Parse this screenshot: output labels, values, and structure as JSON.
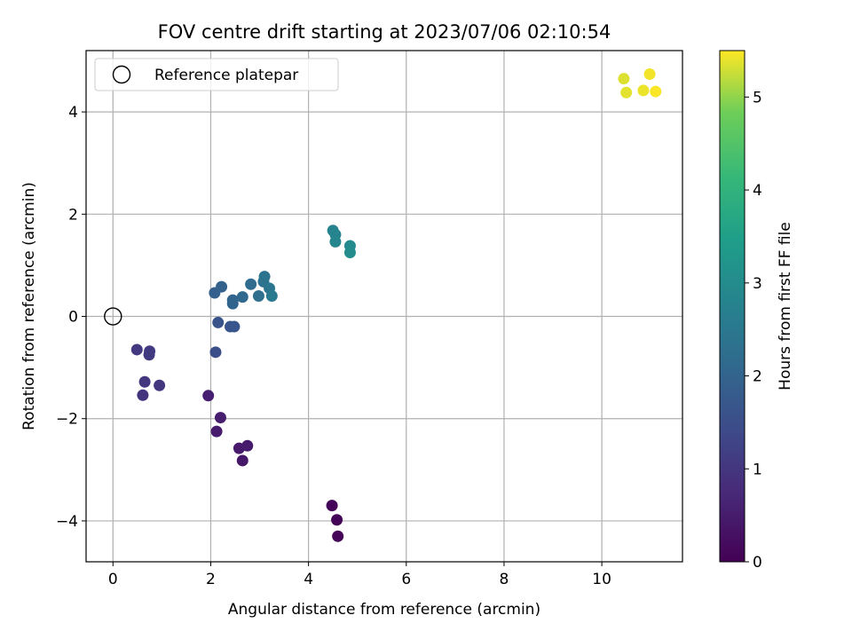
{
  "chart_data": {
    "type": "scatter",
    "title": "FOV centre drift starting at 2023/07/06 02:10:54",
    "xlabel": "Angular distance from reference (arcmin)",
    "ylabel": "Rotation from reference (arcmin)",
    "xlim": [
      -0.55,
      11.65
    ],
    "ylim": [
      -4.8,
      5.2
    ],
    "xticks": [
      0,
      2,
      4,
      6,
      8,
      10
    ],
    "yticks": [
      -4,
      -2,
      0,
      2,
      4
    ],
    "grid": true,
    "legend": {
      "location": "upper-left",
      "entries": [
        "Reference platepar"
      ]
    },
    "reference_point": {
      "x": 0,
      "y": 0,
      "label": "Reference platepar",
      "marker": "open-circle"
    },
    "colorbar": {
      "label": "Hours from first FF file",
      "colormap": "viridis",
      "range": [
        0,
        5.5
      ],
      "ticks": [
        0,
        1,
        2,
        3,
        4,
        5
      ]
    },
    "points": [
      {
        "x": 4.48,
        "y": -3.7,
        "hours": 0.05
      },
      {
        "x": 4.58,
        "y": -3.98,
        "hours": 0.08
      },
      {
        "x": 4.6,
        "y": -4.3,
        "hours": 0.1
      },
      {
        "x": 1.95,
        "y": -1.55,
        "hours": 0.55
      },
      {
        "x": 2.2,
        "y": -1.98,
        "hours": 0.52
      },
      {
        "x": 2.12,
        "y": -2.25,
        "hours": 0.5
      },
      {
        "x": 2.58,
        "y": -2.58,
        "hours": 0.45
      },
      {
        "x": 2.75,
        "y": -2.53,
        "hours": 0.47
      },
      {
        "x": 2.65,
        "y": -2.82,
        "hours": 0.42
      },
      {
        "x": 0.49,
        "y": -0.65,
        "hours": 1.05
      },
      {
        "x": 0.75,
        "y": -0.68,
        "hours": 1.1
      },
      {
        "x": 0.74,
        "y": -0.75,
        "hours": 1.08
      },
      {
        "x": 0.65,
        "y": -1.28,
        "hours": 1.0
      },
      {
        "x": 0.61,
        "y": -1.54,
        "hours": 0.95
      },
      {
        "x": 0.95,
        "y": -1.35,
        "hours": 1.02
      },
      {
        "x": 2.1,
        "y": -0.7,
        "hours": 1.5
      },
      {
        "x": 2.15,
        "y": -0.12,
        "hours": 1.6
      },
      {
        "x": 2.4,
        "y": -0.2,
        "hours": 1.65
      },
      {
        "x": 2.48,
        "y": -0.2,
        "hours": 1.68
      },
      {
        "x": 2.08,
        "y": 0.46,
        "hours": 1.9
      },
      {
        "x": 2.22,
        "y": 0.58,
        "hours": 1.95
      },
      {
        "x": 2.45,
        "y": 0.32,
        "hours": 2.0
      },
      {
        "x": 2.45,
        "y": 0.25,
        "hours": 2.02
      },
      {
        "x": 2.65,
        "y": 0.38,
        "hours": 2.1
      },
      {
        "x": 2.82,
        "y": 0.63,
        "hours": 2.2
      },
      {
        "x": 2.98,
        "y": 0.4,
        "hours": 2.3
      },
      {
        "x": 3.08,
        "y": 0.68,
        "hours": 2.35
      },
      {
        "x": 3.1,
        "y": 0.78,
        "hours": 2.4
      },
      {
        "x": 3.2,
        "y": 0.55,
        "hours": 2.45
      },
      {
        "x": 3.25,
        "y": 0.4,
        "hours": 2.55
      },
      {
        "x": 4.5,
        "y": 1.68,
        "hours": 2.75
      },
      {
        "x": 4.55,
        "y": 1.6,
        "hours": 2.8
      },
      {
        "x": 4.55,
        "y": 1.46,
        "hours": 2.85
      },
      {
        "x": 4.85,
        "y": 1.38,
        "hours": 2.95
      },
      {
        "x": 4.85,
        "y": 1.25,
        "hours": 3.0
      },
      {
        "x": 10.45,
        "y": 4.65,
        "hours": 5.35
      },
      {
        "x": 10.5,
        "y": 4.38,
        "hours": 5.38
      },
      {
        "x": 10.85,
        "y": 4.42,
        "hours": 5.42
      },
      {
        "x": 10.98,
        "y": 4.74,
        "hours": 5.45
      },
      {
        "x": 11.1,
        "y": 4.4,
        "hours": 5.48
      }
    ]
  }
}
